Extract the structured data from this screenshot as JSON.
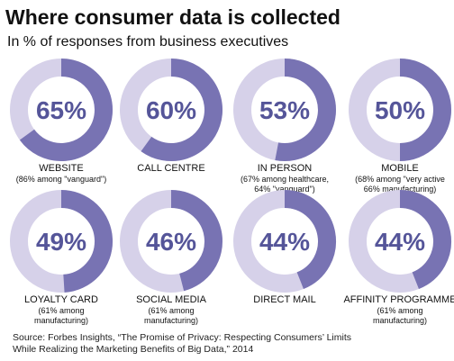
{
  "title": "Where consumer data is collected",
  "subtitle": "In % of responses from business executives",
  "colors": {
    "fill": "#7873b3",
    "track": "#d6d1e9",
    "value_text": "#555599"
  },
  "chart_data": {
    "type": "donut",
    "unit": "%",
    "items": [
      {
        "label": "WEBSITE",
        "value": 65,
        "note": [
          "(86% among \"vanguard\")"
        ]
      },
      {
        "label": "CALL CENTRE",
        "value": 60,
        "note": []
      },
      {
        "label": "IN PERSON",
        "value": 53,
        "note": [
          "(67% among healthcare,",
          "64% \"vanguard\")"
        ]
      },
      {
        "label": "MOBILE",
        "value": 50,
        "note": [
          "(68% among \"very active",
          "66% manufacturing)"
        ]
      },
      {
        "label": "LOYALTY CARD",
        "value": 49,
        "note": [
          "(61% among",
          "manufacturing)"
        ]
      },
      {
        "label": "SOCIAL MEDIA",
        "value": 46,
        "note": [
          "(61% among",
          "manufacturing)"
        ]
      },
      {
        "label": "DIRECT MAIL",
        "value": 44,
        "note": []
      },
      {
        "label": "AFFINITY PROGRAMME",
        "value": 44,
        "note": [
          "(61% among",
          "manufacturing)"
        ]
      }
    ]
  },
  "source": {
    "line1": "Source: Forbes Insights, “The Promise of Privacy: Respecting Consumers’ Limits",
    "line2": "While Realizing the Marketing Benefits of Big Data,” 2014"
  }
}
